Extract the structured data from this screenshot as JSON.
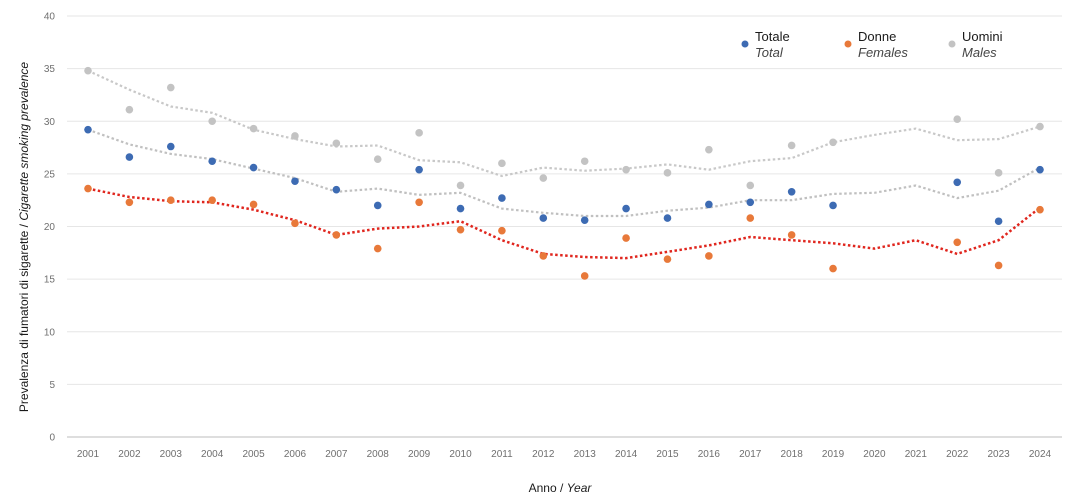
{
  "chart_data": {
    "type": "scatter",
    "title": "",
    "x_label_main": "Anno",
    "x_label_sep": " / ",
    "x_label_en": "Year",
    "y_label_main": "Prevalenza di fumatori di sigarette",
    "y_label_sep": " / ",
    "y_label_en": "Cigarette smoking prevalence",
    "ylim": [
      0,
      40
    ],
    "y_ticks": [
      0,
      5,
      10,
      15,
      20,
      25,
      30,
      35,
      40
    ],
    "grid": true,
    "legend_position": "top-right",
    "x": [
      2001,
      2002,
      2003,
      2004,
      2005,
      2006,
      2007,
      2008,
      2009,
      2010,
      2011,
      2012,
      2013,
      2014,
      2015,
      2016,
      2017,
      2018,
      2019,
      2020,
      2021,
      2022,
      2023,
      2024
    ],
    "series": [
      {
        "key": "totale",
        "name": "Totale",
        "name_en": "Total",
        "color": "#3d6bb3",
        "values": [
          29.2,
          26.6,
          27.6,
          26.2,
          25.6,
          24.3,
          23.5,
          22.0,
          25.4,
          21.7,
          22.7,
          20.8,
          20.6,
          21.7,
          20.8,
          22.1,
          22.3,
          23.3,
          22.0,
          null,
          null,
          24.2,
          20.5,
          25.4
        ],
        "trend": [
          29.2,
          27.8,
          26.9,
          26.4,
          25.5,
          24.6,
          23.3,
          23.6,
          23.0,
          23.2,
          21.7,
          21.3,
          21.0,
          21.0,
          21.5,
          21.8,
          22.5,
          22.5,
          23.1,
          23.2,
          23.9,
          22.7,
          23.4,
          25.6
        ],
        "trend_color": "#c0c0c0"
      },
      {
        "key": "donne",
        "name": "Donne",
        "name_en": "Females",
        "color": "#e8793a",
        "values": [
          23.6,
          22.3,
          22.5,
          22.5,
          22.1,
          20.3,
          19.2,
          17.9,
          22.3,
          19.7,
          19.6,
          17.2,
          15.3,
          18.9,
          16.9,
          17.2,
          20.8,
          19.2,
          16.0,
          null,
          null,
          18.5,
          16.3,
          21.6
        ],
        "trend": [
          23.6,
          22.8,
          22.4,
          22.3,
          21.6,
          20.6,
          19.2,
          19.8,
          20.0,
          20.5,
          18.7,
          17.4,
          17.1,
          17.0,
          17.6,
          18.2,
          19.0,
          18.7,
          18.4,
          17.9,
          18.7,
          17.4,
          18.7,
          21.8
        ],
        "trend_color": "#e0261e"
      },
      {
        "key": "uomini",
        "name": "Uomini",
        "name_en": "Males",
        "color": "#c3c3c3",
        "values": [
          34.8,
          31.1,
          33.2,
          30.0,
          29.3,
          28.6,
          27.9,
          26.4,
          28.9,
          23.9,
          26.0,
          24.6,
          26.2,
          25.4,
          25.1,
          27.3,
          23.9,
          27.7,
          28.0,
          null,
          null,
          30.2,
          25.1,
          29.5
        ],
        "trend": [
          34.8,
          33.0,
          31.4,
          30.8,
          29.2,
          28.3,
          27.6,
          27.7,
          26.3,
          26.1,
          24.8,
          25.6,
          25.3,
          25.5,
          25.9,
          25.4,
          26.2,
          26.5,
          28.0,
          28.7,
          29.3,
          28.2,
          28.3,
          29.5
        ],
        "trend_color": "#c8c8c8"
      }
    ]
  }
}
